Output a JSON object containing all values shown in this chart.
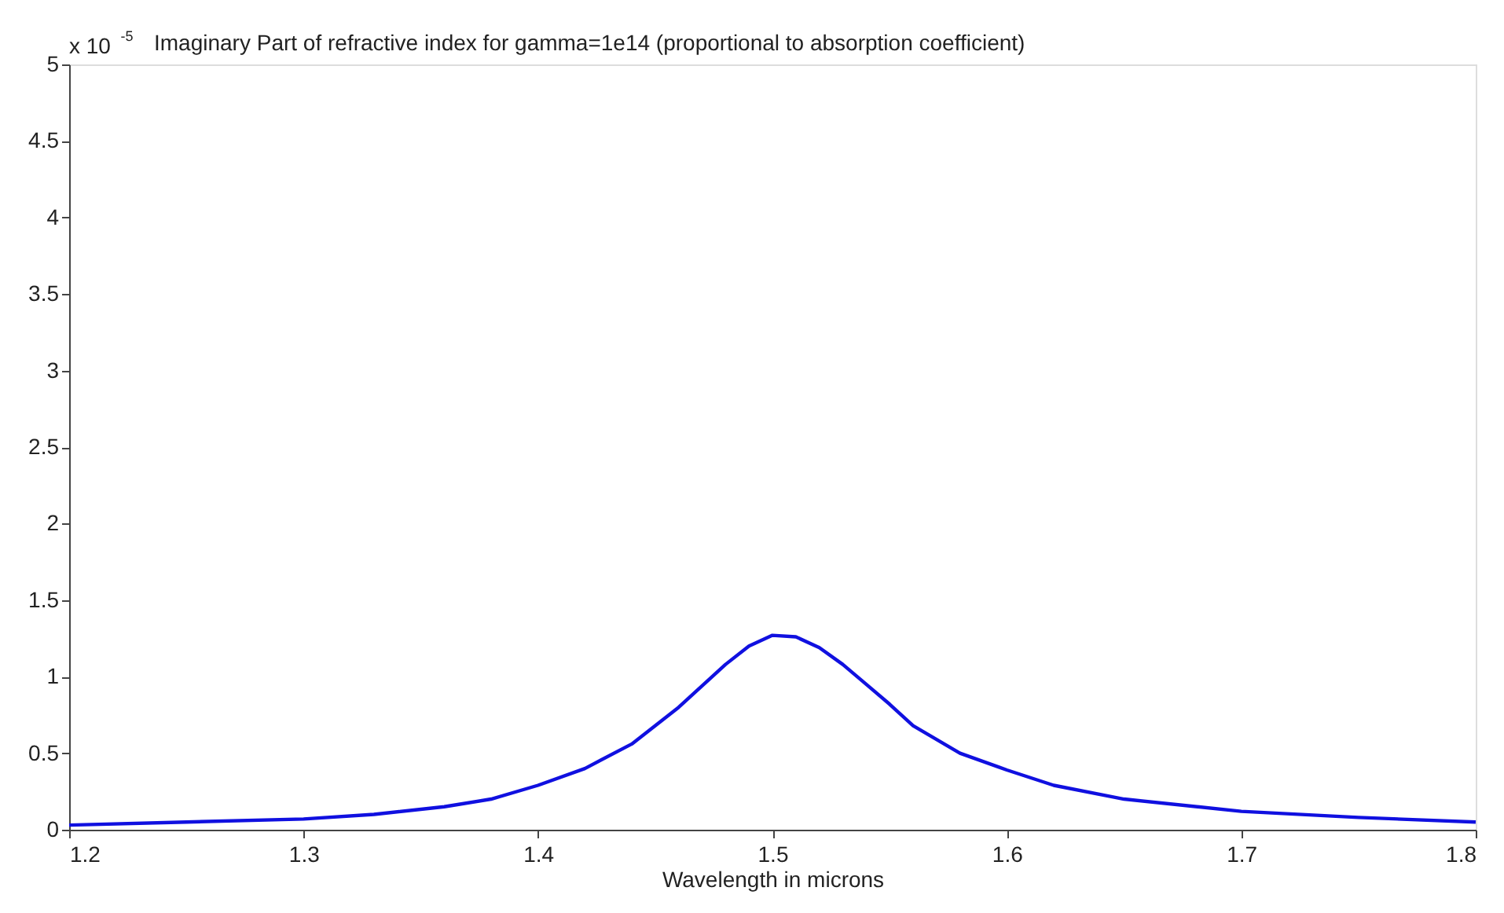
{
  "chart_data": {
    "type": "line",
    "title": "Imaginary Part of refractive index for gamma=1e14 (proportional to absorption coefficient)",
    "xlabel": "Wavelength in microns",
    "annotations": [
      "x 10$^{-5}$"
    ],
    "x": [
      1.2,
      1.25,
      1.3,
      1.33,
      1.36,
      1.38,
      1.4,
      1.42,
      1.44,
      1.46,
      1.48,
      1.49,
      1.5,
      1.51,
      1.52,
      1.53,
      1.54,
      1.55,
      1.56,
      1.58,
      1.6,
      1.62,
      1.65,
      1.7,
      1.75,
      1.8
    ],
    "series": [
      {
        "color": "#1010e0",
        "values": [
          0.03,
          0.05,
          0.07,
          0.1,
          0.15,
          0.2,
          0.29,
          0.4,
          0.56,
          0.8,
          1.08,
          1.2,
          1.27,
          1.26,
          1.19,
          1.08,
          0.95,
          0.82,
          0.68,
          0.5,
          0.39,
          0.29,
          0.2,
          0.12,
          0.08,
          0.05
        ]
      }
    ],
    "xlim": [
      1.2,
      1.8
    ],
    "xticks": [
      1.2,
      1.3,
      1.4,
      1.5,
      1.6,
      1.7,
      1.8
    ],
    "ylim": [
      0,
      5
    ],
    "yticks": [
      0,
      0.5,
      1,
      1.5,
      2,
      2.5,
      3,
      3.5,
      4,
      4.5,
      5
    ],
    "grid": false,
    "marker": "none",
    "line_style": "solid"
  }
}
